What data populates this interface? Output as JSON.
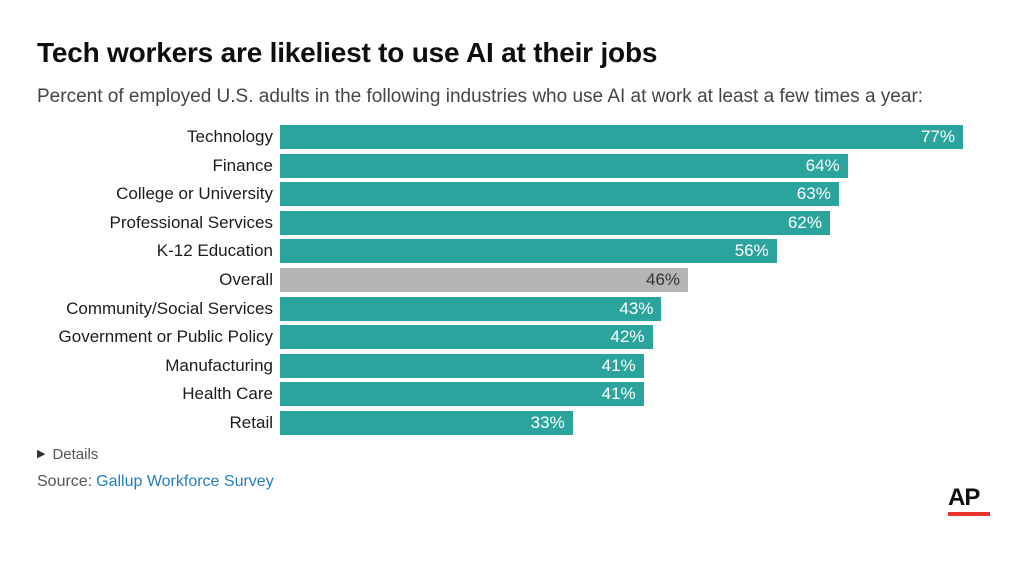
{
  "header": {
    "title": "Tech workers are likeliest to use AI at their jobs",
    "subtitle": "Percent of employed U.S. adults in the following industries who use AI at work at least a few times a year:"
  },
  "chart_data": {
    "type": "bar",
    "orientation": "horizontal",
    "title": "Tech workers are likeliest to use AI at their jobs",
    "subtitle": "Percent of employed U.S. adults in the following industries who use AI at work at least a few times a year:",
    "unit": "%",
    "xlim": [
      0,
      77
    ],
    "grid": false,
    "legend": false,
    "categories": [
      "Technology",
      "Finance",
      "College or University",
      "Professional Services",
      "K-12 Education",
      "Overall",
      "Community/Social Services",
      "Government or Public Policy",
      "Manufacturing",
      "Health Care",
      "Retail"
    ],
    "values": [
      77,
      64,
      63,
      62,
      56,
      46,
      43,
      42,
      41,
      41,
      33
    ],
    "value_labels": [
      "77%",
      "64%",
      "63%",
      "62%",
      "56%",
      "46%",
      "43%",
      "42%",
      "41%",
      "41%",
      "33%"
    ],
    "highlight_category": "Overall",
    "colors": {
      "bar": "#2ca49e",
      "highlight_bar": "#b4b4b4",
      "value_label": "#ffffff",
      "highlight_value_label": "#333333"
    }
  },
  "footer": {
    "details_icon": "▶",
    "details_label": "Details",
    "source_prefix": "Source:",
    "source_link": "Gallup Workforce Survey",
    "link_color": "#2380bd"
  },
  "logo": {
    "text": "AP",
    "underline_color": "#e8342c"
  }
}
